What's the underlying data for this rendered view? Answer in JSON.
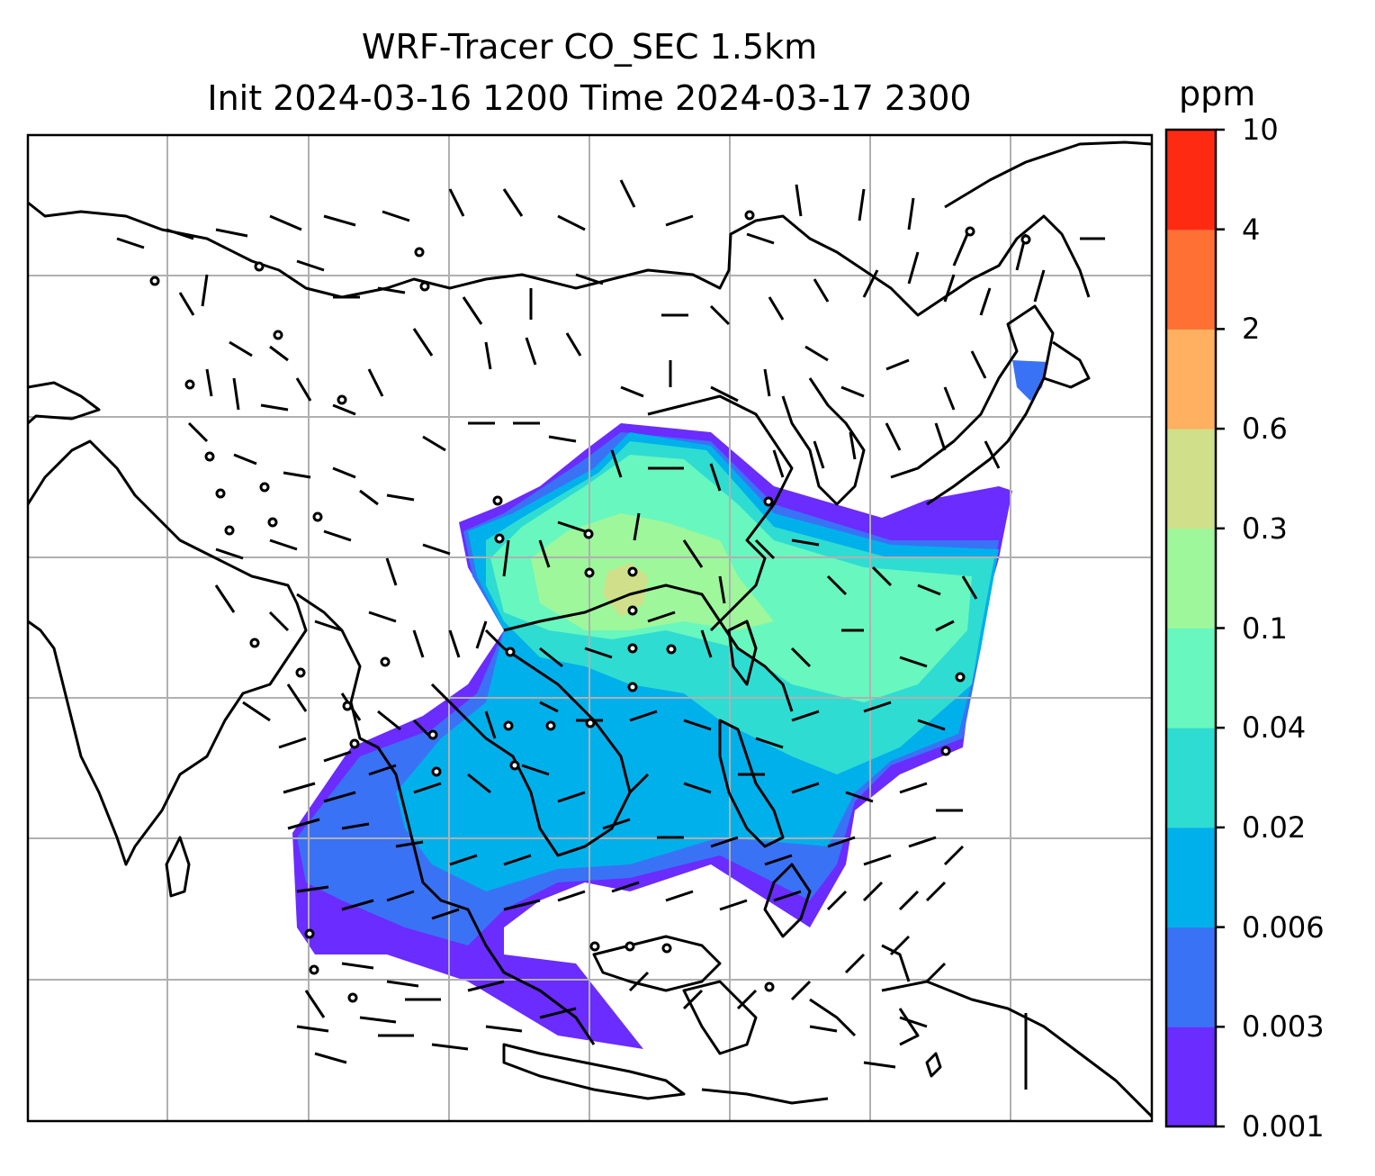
{
  "title": {
    "line1": "WRF-Tracer CO_SEC 1.5km",
    "line2": "Init 2024-03-16 1200 Time 2024-03-17 2300"
  },
  "colorbar": {
    "unit": "ppm",
    "levels": [
      "0.001",
      "0.003",
      "0.006",
      "0.02",
      "0.04",
      "0.1",
      "0.3",
      "0.6",
      "2",
      "4",
      "10"
    ],
    "colors": [
      "#6a2cff",
      "#3a72f5",
      "#00b0eb",
      "#2fdcd2",
      "#68f7bf",
      "#9ef79b",
      "#d0e08a",
      "#ffb060",
      "#ff7035",
      "#ff2a12"
    ]
  },
  "map": {
    "gridlines": true,
    "fill_colors": {
      "lightest": "#6a2cff",
      "light": "#3a72f5",
      "mid": "#00b0eb",
      "cyan": "#2fdcd2",
      "aqua": "#68f7bf",
      "green": "#9ef79b",
      "yellowgreen": "#d0e08a"
    }
  }
}
